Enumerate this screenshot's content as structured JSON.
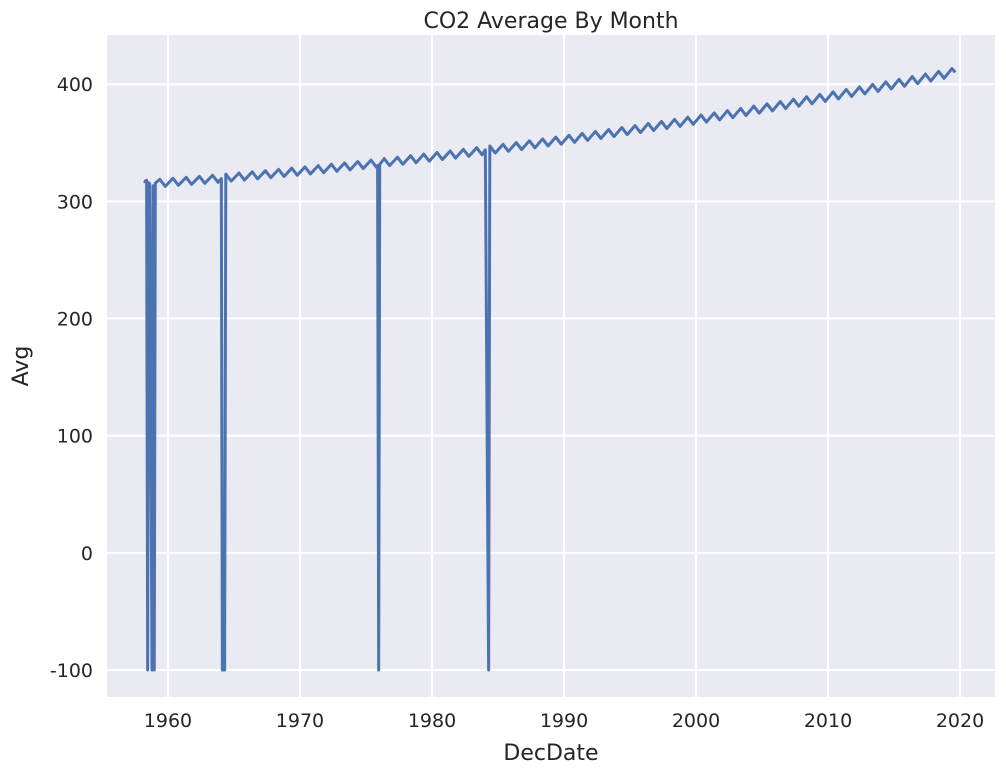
{
  "chart_data": {
    "type": "line",
    "title": "CO2 Average By Month",
    "x_label": "DecDate",
    "y_label": "Avg",
    "grid": true,
    "xlim": [
      1955.38,
      2022.65
    ],
    "ylim": [
      -123,
      442
    ],
    "xticks": [
      1960,
      1970,
      1980,
      1990,
      2000,
      2010,
      2020
    ],
    "yticks": [
      -100,
      0,
      100,
      200,
      300,
      400
    ],
    "x": [
      1958.21,
      1958.29,
      1958.38,
      1958.46,
      1958.54,
      1958.62,
      1958.79,
      1958.88,
      1958.96,
      1959.04,
      1959.38,
      1959.79,
      1960.38,
      1960.79,
      1961.38,
      1961.79,
      1962.38,
      1962.79,
      1963.38,
      1963.79,
      1964.04,
      1964.12,
      1964.21,
      1964.29,
      1964.38,
      1964.79,
      1965.38,
      1965.79,
      1966.38,
      1966.79,
      1967.38,
      1967.79,
      1968.38,
      1968.79,
      1969.38,
      1969.79,
      1970.38,
      1970.79,
      1971.38,
      1971.79,
      1972.38,
      1972.79,
      1973.38,
      1973.79,
      1974.38,
      1974.79,
      1975.38,
      1975.79,
      1975.88,
      1975.96,
      1976.04,
      1976.38,
      1976.79,
      1977.38,
      1977.79,
      1978.38,
      1978.79,
      1979.38,
      1979.79,
      1980.38,
      1980.79,
      1981.38,
      1981.79,
      1982.38,
      1982.79,
      1983.38,
      1983.79,
      1984.04,
      1984.29,
      1984.38,
      1984.79,
      1985.38,
      1985.79,
      1986.38,
      1986.79,
      1987.38,
      1987.79,
      1988.38,
      1988.79,
      1989.38,
      1989.79,
      1990.38,
      1990.79,
      1991.38,
      1991.79,
      1992.38,
      1992.79,
      1993.38,
      1993.79,
      1994.38,
      1994.79,
      1995.38,
      1995.79,
      1996.38,
      1996.79,
      1997.38,
      1997.79,
      1998.38,
      1998.79,
      1999.38,
      1999.79,
      2000.38,
      2000.79,
      2001.38,
      2001.79,
      2002.38,
      2002.79,
      2003.38,
      2003.79,
      2004.38,
      2004.79,
      2005.38,
      2005.79,
      2006.38,
      2006.79,
      2007.38,
      2007.79,
      2008.38,
      2008.79,
      2009.38,
      2009.79,
      2010.38,
      2010.79,
      2011.38,
      2011.79,
      2012.38,
      2012.79,
      2013.38,
      2013.79,
      2014.38,
      2014.79,
      2015.38,
      2015.79,
      2016.38,
      2016.79,
      2017.38,
      2017.79,
      2018.38,
      2018.79,
      2019.38,
      2019.54,
      2019.62
    ],
    "series": [
      {
        "name": "Avg",
        "color": "#4c72b0",
        "values": [
          315.7,
          317.5,
          318.0,
          -99.99,
          315.9,
          315.0,
          -99.99,
          313.3,
          -99.99,
          315.6,
          318.8,
          312.8,
          319.7,
          313.7,
          320.5,
          314.5,
          321.4,
          315.4,
          322.3,
          316.3,
          319.4,
          -99.99,
          -99.99,
          -99.99,
          323.3,
          317.3,
          324.2,
          318.2,
          325.2,
          319.2,
          326.2,
          320.2,
          327.3,
          321.3,
          328.3,
          322.3,
          329.4,
          323.4,
          330.5,
          324.5,
          331.7,
          325.7,
          332.8,
          326.8,
          334.0,
          328.0,
          335.2,
          329.2,
          330.5,
          -99.99,
          331.5,
          336.5,
          330.5,
          337.7,
          331.7,
          339.0,
          333.0,
          340.3,
          334.3,
          341.7,
          335.7,
          343.0,
          337.0,
          344.4,
          338.4,
          345.8,
          339.8,
          344.0,
          -99.99,
          347.3,
          341.3,
          348.7,
          342.7,
          350.2,
          344.2,
          351.7,
          345.7,
          353.3,
          347.3,
          354.8,
          348.8,
          356.4,
          350.4,
          358.0,
          352.0,
          359.7,
          353.7,
          361.3,
          355.3,
          363.0,
          357.0,
          364.7,
          358.7,
          366.5,
          360.5,
          368.2,
          362.2,
          370.0,
          364.0,
          371.8,
          365.8,
          373.7,
          367.7,
          375.5,
          369.5,
          377.4,
          371.4,
          379.3,
          373.3,
          381.3,
          375.3,
          383.2,
          377.2,
          385.2,
          379.2,
          387.2,
          381.2,
          389.3,
          383.3,
          391.3,
          385.3,
          393.4,
          387.4,
          395.5,
          389.5,
          397.7,
          391.7,
          399.8,
          393.8,
          402.0,
          396.0,
          404.2,
          398.2,
          406.5,
          400.5,
          408.7,
          402.7,
          411.0,
          405.0,
          413.3,
          411.5,
          410.0
        ]
      }
    ]
  }
}
